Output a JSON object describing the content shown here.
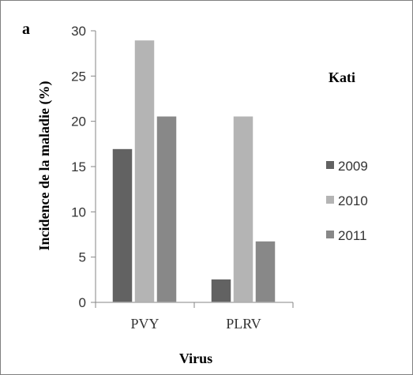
{
  "chart_data": {
    "type": "bar",
    "panel_letter": "a",
    "title": "Kati",
    "xlabel": "Virus",
    "ylabel": "Incidence de la maladie (%)",
    "categories": [
      "PVY",
      "PLRV"
    ],
    "ylim": [
      0,
      30
    ],
    "yticks": [
      "0",
      "5",
      "10",
      "15",
      "20",
      "25",
      "30"
    ],
    "ytick_values": [
      0,
      5,
      10,
      15,
      20,
      25,
      30
    ],
    "grid": false,
    "legend_position": "right",
    "series": [
      {
        "name": "2009",
        "values": [
          17,
          2.6
        ],
        "color": "#626262"
      },
      {
        "name": "2010",
        "values": [
          29,
          20.6
        ],
        "color": "#b4b4b4"
      },
      {
        "name": "2011",
        "values": [
          20.6,
          6.8
        ],
        "color": "#888888"
      }
    ]
  }
}
